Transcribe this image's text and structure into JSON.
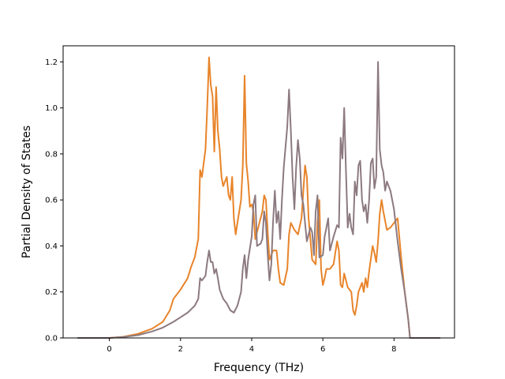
{
  "chart_data": {
    "type": "line",
    "title": "",
    "xlabel": "Frequency (THz)",
    "ylabel": "Partial Density of States",
    "xlim": [
      -1.3,
      9.7
    ],
    "ylim": [
      0.0,
      1.27
    ],
    "xticks": [
      0,
      2,
      4,
      6,
      8
    ],
    "yticks": [
      0.0,
      0.2,
      0.4,
      0.6,
      0.8,
      1.0,
      1.2
    ],
    "xtick_labels": [
      "0",
      "2",
      "4",
      "6",
      "8"
    ],
    "ytick_labels": [
      "0.0",
      "0.2",
      "0.4",
      "0.6",
      "0.8",
      "1.0",
      "1.2"
    ],
    "grid": false,
    "legend": "none",
    "series": [
      {
        "color": "#e8842a",
        "points": [
          [
            -0.9,
            0.0
          ],
          [
            0.0,
            0.0
          ],
          [
            0.4,
            0.005
          ],
          [
            0.8,
            0.018
          ],
          [
            1.2,
            0.04
          ],
          [
            1.5,
            0.07
          ],
          [
            1.7,
            0.12
          ],
          [
            1.8,
            0.17
          ],
          [
            2.0,
            0.21
          ],
          [
            2.2,
            0.26
          ],
          [
            2.3,
            0.31
          ],
          [
            2.4,
            0.35
          ],
          [
            2.5,
            0.43
          ],
          [
            2.55,
            0.73
          ],
          [
            2.6,
            0.7
          ],
          [
            2.7,
            0.82
          ],
          [
            2.75,
            1.0
          ],
          [
            2.8,
            1.22
          ],
          [
            2.85,
            1.1
          ],
          [
            2.9,
            1.05
          ],
          [
            2.95,
            0.81
          ],
          [
            3.0,
            1.09
          ],
          [
            3.05,
            0.9
          ],
          [
            3.1,
            0.82
          ],
          [
            3.15,
            0.7
          ],
          [
            3.2,
            0.66
          ],
          [
            3.3,
            0.7
          ],
          [
            3.35,
            0.62
          ],
          [
            3.4,
            0.6
          ],
          [
            3.45,
            0.7
          ],
          [
            3.5,
            0.52
          ],
          [
            3.55,
            0.45
          ],
          [
            3.6,
            0.5
          ],
          [
            3.7,
            0.6
          ],
          [
            3.75,
            0.75
          ],
          [
            3.8,
            1.14
          ],
          [
            3.85,
            0.76
          ],
          [
            3.9,
            0.68
          ],
          [
            3.95,
            0.57
          ],
          [
            4.0,
            0.58
          ],
          [
            4.05,
            0.55
          ],
          [
            4.1,
            0.43
          ],
          [
            4.2,
            0.49
          ],
          [
            4.3,
            0.55
          ],
          [
            4.35,
            0.62
          ],
          [
            4.4,
            0.6
          ],
          [
            4.45,
            0.46
          ],
          [
            4.5,
            0.34
          ],
          [
            4.6,
            0.38
          ],
          [
            4.7,
            0.38
          ],
          [
            4.75,
            0.3
          ],
          [
            4.8,
            0.24
          ],
          [
            4.9,
            0.23
          ],
          [
            5.0,
            0.3
          ],
          [
            5.05,
            0.45
          ],
          [
            5.1,
            0.5
          ],
          [
            5.2,
            0.47
          ],
          [
            5.3,
            0.45
          ],
          [
            5.4,
            0.52
          ],
          [
            5.5,
            0.75
          ],
          [
            5.55,
            0.7
          ],
          [
            5.6,
            0.52
          ],
          [
            5.7,
            0.34
          ],
          [
            5.8,
            0.32
          ],
          [
            5.85,
            0.5
          ],
          [
            5.9,
            0.6
          ],
          [
            5.95,
            0.3
          ],
          [
            6.0,
            0.23
          ],
          [
            6.05,
            0.26
          ],
          [
            6.1,
            0.3
          ],
          [
            6.2,
            0.3
          ],
          [
            6.3,
            0.32
          ],
          [
            6.4,
            0.42
          ],
          [
            6.45,
            0.38
          ],
          [
            6.5,
            0.23
          ],
          [
            6.55,
            0.22
          ],
          [
            6.6,
            0.28
          ],
          [
            6.65,
            0.25
          ],
          [
            6.7,
            0.22
          ],
          [
            6.8,
            0.2
          ],
          [
            6.85,
            0.12
          ],
          [
            6.9,
            0.1
          ],
          [
            6.95,
            0.14
          ],
          [
            7.0,
            0.2
          ],
          [
            7.1,
            0.24
          ],
          [
            7.15,
            0.2
          ],
          [
            7.2,
            0.26
          ],
          [
            7.25,
            0.22
          ],
          [
            7.3,
            0.29
          ],
          [
            7.4,
            0.4
          ],
          [
            7.45,
            0.37
          ],
          [
            7.5,
            0.33
          ],
          [
            7.55,
            0.42
          ],
          [
            7.6,
            0.54
          ],
          [
            7.65,
            0.6
          ],
          [
            7.7,
            0.55
          ],
          [
            7.8,
            0.47
          ],
          [
            7.9,
            0.48
          ],
          [
            8.0,
            0.5
          ],
          [
            8.1,
            0.52
          ],
          [
            8.2,
            0.35
          ],
          [
            8.3,
            0.2
          ],
          [
            8.4,
            0.08
          ],
          [
            8.45,
            0.0
          ],
          [
            9.3,
            0.0
          ]
        ]
      },
      {
        "color": "#8c7a80",
        "points": [
          [
            -0.9,
            0.0
          ],
          [
            0.0,
            0.0
          ],
          [
            0.4,
            0.004
          ],
          [
            0.8,
            0.012
          ],
          [
            1.2,
            0.028
          ],
          [
            1.5,
            0.045
          ],
          [
            1.8,
            0.07
          ],
          [
            2.0,
            0.09
          ],
          [
            2.2,
            0.11
          ],
          [
            2.4,
            0.14
          ],
          [
            2.5,
            0.17
          ],
          [
            2.55,
            0.26
          ],
          [
            2.6,
            0.25
          ],
          [
            2.7,
            0.27
          ],
          [
            2.75,
            0.33
          ],
          [
            2.8,
            0.38
          ],
          [
            2.85,
            0.33
          ],
          [
            2.9,
            0.33
          ],
          [
            2.95,
            0.28
          ],
          [
            3.0,
            0.3
          ],
          [
            3.05,
            0.26
          ],
          [
            3.1,
            0.21
          ],
          [
            3.2,
            0.17
          ],
          [
            3.3,
            0.15
          ],
          [
            3.4,
            0.12
          ],
          [
            3.5,
            0.11
          ],
          [
            3.6,
            0.14
          ],
          [
            3.7,
            0.2
          ],
          [
            3.75,
            0.3
          ],
          [
            3.8,
            0.36
          ],
          [
            3.85,
            0.26
          ],
          [
            3.9,
            0.34
          ],
          [
            4.0,
            0.44
          ],
          [
            4.05,
            0.58
          ],
          [
            4.1,
            0.62
          ],
          [
            4.15,
            0.4
          ],
          [
            4.25,
            0.41
          ],
          [
            4.3,
            0.43
          ],
          [
            4.35,
            0.55
          ],
          [
            4.4,
            0.5
          ],
          [
            4.45,
            0.36
          ],
          [
            4.5,
            0.25
          ],
          [
            4.55,
            0.32
          ],
          [
            4.6,
            0.5
          ],
          [
            4.65,
            0.64
          ],
          [
            4.7,
            0.5
          ],
          [
            4.75,
            0.55
          ],
          [
            4.8,
            0.43
          ],
          [
            4.85,
            0.6
          ],
          [
            4.9,
            0.74
          ],
          [
            5.0,
            0.92
          ],
          [
            5.05,
            1.08
          ],
          [
            5.1,
            0.9
          ],
          [
            5.15,
            0.7
          ],
          [
            5.2,
            0.56
          ],
          [
            5.25,
            0.74
          ],
          [
            5.3,
            0.86
          ],
          [
            5.35,
            0.78
          ],
          [
            5.4,
            0.62
          ],
          [
            5.45,
            0.58
          ],
          [
            5.5,
            0.5
          ],
          [
            5.55,
            0.42
          ],
          [
            5.6,
            0.45
          ],
          [
            5.65,
            0.48
          ],
          [
            5.7,
            0.46
          ],
          [
            5.75,
            0.36
          ],
          [
            5.8,
            0.55
          ],
          [
            5.85,
            0.62
          ],
          [
            5.9,
            0.35
          ],
          [
            6.0,
            0.36
          ],
          [
            6.05,
            0.44
          ],
          [
            6.1,
            0.48
          ],
          [
            6.15,
            0.52
          ],
          [
            6.2,
            0.38
          ],
          [
            6.3,
            0.44
          ],
          [
            6.4,
            0.49
          ],
          [
            6.45,
            0.48
          ],
          [
            6.5,
            0.87
          ],
          [
            6.55,
            0.78
          ],
          [
            6.6,
            1.0
          ],
          [
            6.65,
            0.72
          ],
          [
            6.7,
            0.48
          ],
          [
            6.75,
            0.54
          ],
          [
            6.8,
            0.48
          ],
          [
            6.85,
            0.45
          ],
          [
            6.9,
            0.68
          ],
          [
            6.95,
            0.62
          ],
          [
            7.0,
            0.75
          ],
          [
            7.05,
            0.77
          ],
          [
            7.1,
            0.6
          ],
          [
            7.15,
            0.55
          ],
          [
            7.2,
            0.58
          ],
          [
            7.25,
            0.5
          ],
          [
            7.3,
            0.6
          ],
          [
            7.35,
            0.76
          ],
          [
            7.4,
            0.78
          ],
          [
            7.45,
            0.65
          ],
          [
            7.5,
            0.7
          ],
          [
            7.55,
            1.2
          ],
          [
            7.6,
            0.82
          ],
          [
            7.65,
            0.75
          ],
          [
            7.7,
            0.72
          ],
          [
            7.75,
            0.64
          ],
          [
            7.8,
            0.68
          ],
          [
            7.9,
            0.64
          ],
          [
            8.0,
            0.56
          ],
          [
            8.1,
            0.42
          ],
          [
            8.2,
            0.3
          ],
          [
            8.3,
            0.2
          ],
          [
            8.4,
            0.08
          ],
          [
            8.45,
            0.0
          ],
          [
            9.3,
            0.0
          ]
        ]
      }
    ]
  }
}
